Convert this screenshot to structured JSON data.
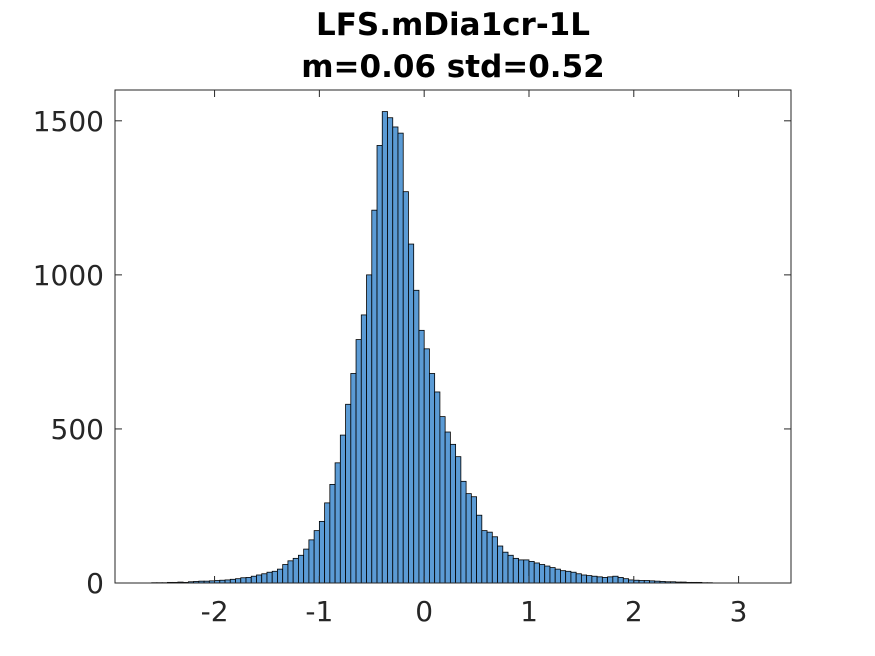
{
  "chart_data": {
    "type": "bar",
    "title": "LFS.mDia1cr-1L",
    "subtitle": "m=0.06 std=0.52",
    "xlabel": "",
    "ylabel": "",
    "xlim": [
      -2.95,
      3.5
    ],
    "ylim": [
      0,
      1600
    ],
    "xticks": [
      -2,
      -1,
      0,
      1,
      2,
      3
    ],
    "xtick_labels": [
      "-2",
      "-1",
      "0",
      "1",
      "2",
      "3"
    ],
    "yticks": [
      0,
      500,
      1000,
      1500
    ],
    "ytick_labels": [
      "0",
      "500",
      "1000",
      "1500"
    ],
    "grid": false,
    "bar_color": "#5b9bd5",
    "edge_color": "#000000",
    "bin_width": 0.05,
    "bin_start": -2.6,
    "values": [
      1,
      1,
      1,
      2,
      2,
      3,
      2,
      4,
      5,
      6,
      6,
      7,
      8,
      9,
      10,
      12,
      14,
      17,
      18,
      22,
      26,
      30,
      35,
      38,
      45,
      60,
      72,
      80,
      90,
      110,
      140,
      170,
      200,
      260,
      320,
      390,
      480,
      580,
      680,
      790,
      870,
      1000,
      1210,
      1420,
      1530,
      1510,
      1480,
      1460,
      1270,
      1100,
      950,
      820,
      760,
      680,
      620,
      540,
      490,
      450,
      410,
      330,
      290,
      280,
      220,
      170,
      165,
      150,
      120,
      100,
      90,
      80,
      75,
      75,
      70,
      65,
      60,
      55,
      50,
      45,
      40,
      38,
      35,
      30,
      26,
      24,
      22,
      20,
      18,
      20,
      22,
      18,
      14,
      10,
      9,
      8,
      8,
      7,
      6,
      5,
      4,
      4,
      3,
      3,
      2,
      2,
      2,
      1,
      1
    ]
  }
}
